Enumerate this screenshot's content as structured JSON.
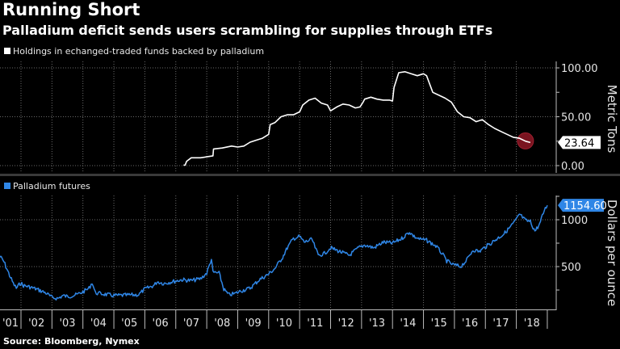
{
  "header": {
    "title": "Running Short",
    "subtitle": "Palladium deficit sends users scrambling for supplies through ETFs"
  },
  "footer": {
    "source": "Source: Bloomberg, Nymex"
  },
  "colors": {
    "background": "#000000",
    "etf_line": "#ffffff",
    "futures_line": "#2f86e6",
    "highlight_circle": "#7a1420",
    "grid": "#6a6a6a"
  },
  "chart_data": [
    {
      "type": "line",
      "title": "Holdings in echanged-traded funds backed by palladium",
      "legend": "Holdings in echanged-traded funds backed by palladium",
      "legend_placement": "top-left",
      "ylabel": "Metric Tons",
      "ylim": [
        -5,
        105
      ],
      "yticks": [
        0,
        50,
        100
      ],
      "ytick_labels": [
        "0.00",
        "50.00",
        "100.00"
      ],
      "grid": true,
      "last_value": 23.64,
      "last_value_label": "23.64",
      "series": [
        {
          "name": "ETF holdings",
          "x": [
            2007.25,
            2007.3,
            2007.35,
            2007.5,
            2007.8,
            2008.0,
            2008.2,
            2008.22,
            2008.5,
            2008.8,
            2009.0,
            2009.2,
            2009.4,
            2009.6,
            2009.8,
            2010.0,
            2010.05,
            2010.2,
            2010.4,
            2010.6,
            2010.8,
            2011.0,
            2011.1,
            2011.3,
            2011.5,
            2011.7,
            2011.9,
            2012.0,
            2012.2,
            2012.4,
            2012.6,
            2012.8,
            2012.95,
            2013.05,
            2013.1,
            2013.3,
            2013.5,
            2013.7,
            2013.9,
            2014.0,
            2014.05,
            2014.2,
            2014.4,
            2014.6,
            2014.8,
            2015.0,
            2015.1,
            2015.3,
            2015.5,
            2015.7,
            2015.9,
            2016.1,
            2016.3,
            2016.5,
            2016.7,
            2016.9,
            2017.1,
            2017.3,
            2017.5,
            2017.7,
            2017.9,
            2018.1,
            2018.3,
            2018.45
          ],
          "values": [
            0.5,
            0.5,
            4.5,
            8,
            8,
            9,
            10,
            17,
            18,
            20,
            19,
            20,
            24,
            26,
            28,
            32,
            42,
            44,
            50,
            52,
            52,
            55,
            62,
            67,
            69,
            64,
            62,
            56,
            60,
            63,
            62,
            59,
            60,
            65,
            68,
            70,
            68,
            67,
            67,
            66,
            80,
            95,
            96,
            94,
            92,
            94,
            92,
            75,
            72,
            69,
            65,
            55,
            50,
            49,
            45,
            47,
            42,
            38,
            35,
            32,
            29,
            28,
            25,
            23.64
          ]
        }
      ]
    },
    {
      "type": "line",
      "title": "Palladium futures",
      "legend": "Palladium futures",
      "legend_placement": "top-left",
      "ylabel": "Dollars per ounce",
      "ylim": [
        0,
        1250
      ],
      "yticks": [
        500,
        1000
      ],
      "ytick_labels": [
        "500",
        "1000"
      ],
      "grid": true,
      "last_value": 1154.6,
      "last_value_label": "1154.60",
      "xlim": [
        2001.3,
        2019.0
      ],
      "xticks": [
        2001,
        2002,
        2003,
        2004,
        2005,
        2006,
        2007,
        2008,
        2009,
        2010,
        2011,
        2012,
        2013,
        2014,
        2015,
        2016,
        2017,
        2018
      ],
      "xtick_labels": [
        "'01",
        "'02",
        "'03",
        "'04",
        "'05",
        "'06",
        "'07",
        "'08",
        "'09",
        "'10",
        "'11",
        "'12",
        "'13",
        "'14",
        "'15",
        "'16",
        "'17",
        "'18"
      ],
      "series": [
        {
          "name": "Palladium futures",
          "x": [
            2001.3,
            2001.45,
            2001.6,
            2001.75,
            2001.85,
            2002.0,
            2002.05,
            2002.2,
            2002.5,
            2002.8,
            2003.0,
            2003.2,
            2003.35,
            2003.5,
            2003.8,
            2004.0,
            2004.2,
            2004.3,
            2004.4,
            2004.6,
            2005.0,
            2005.4,
            2005.8,
            2006.0,
            2006.3,
            2006.4,
            2006.6,
            2006.9,
            2007.2,
            2007.5,
            2007.8,
            2008.0,
            2008.15,
            2008.2,
            2008.4,
            2008.55,
            2008.7,
            2008.9,
            2009.1,
            2009.4,
            2009.7,
            2010.0,
            2010.2,
            2010.45,
            2010.6,
            2010.8,
            2011.0,
            2011.15,
            2011.4,
            2011.6,
            2011.8,
            2012.0,
            2012.3,
            2012.6,
            2012.9,
            2013.1,
            2013.4,
            2013.7,
            2014.0,
            2014.3,
            2014.55,
            2014.7,
            2014.9,
            2015.1,
            2015.4,
            2015.6,
            2015.75,
            2015.95,
            2016.2,
            2016.4,
            2016.6,
            2016.8,
            2017.0,
            2017.3,
            2017.6,
            2017.85,
            2018.0,
            2018.1,
            2018.3,
            2018.45,
            2018.6,
            2018.75,
            2018.9,
            2019.0
          ],
          "values": [
            620,
            550,
            430,
            320,
            270,
            330,
            300,
            290,
            260,
            220,
            170,
            160,
            190,
            180,
            200,
            230,
            270,
            330,
            220,
            210,
            190,
            195,
            200,
            260,
            300,
            340,
            320,
            340,
            360,
            350,
            370,
            430,
            580,
            440,
            430,
            260,
            200,
            210,
            240,
            270,
            360,
            420,
            480,
            600,
            700,
            800,
            820,
            760,
            790,
            620,
            640,
            700,
            660,
            620,
            700,
            730,
            700,
            760,
            750,
            800,
            870,
            820,
            790,
            780,
            720,
            640,
            560,
            520,
            500,
            570,
            680,
            660,
            710,
            780,
            850,
            940,
            1000,
            1060,
            990,
            980,
            880,
            950,
            1100,
            1154.6
          ]
        }
      ]
    }
  ]
}
